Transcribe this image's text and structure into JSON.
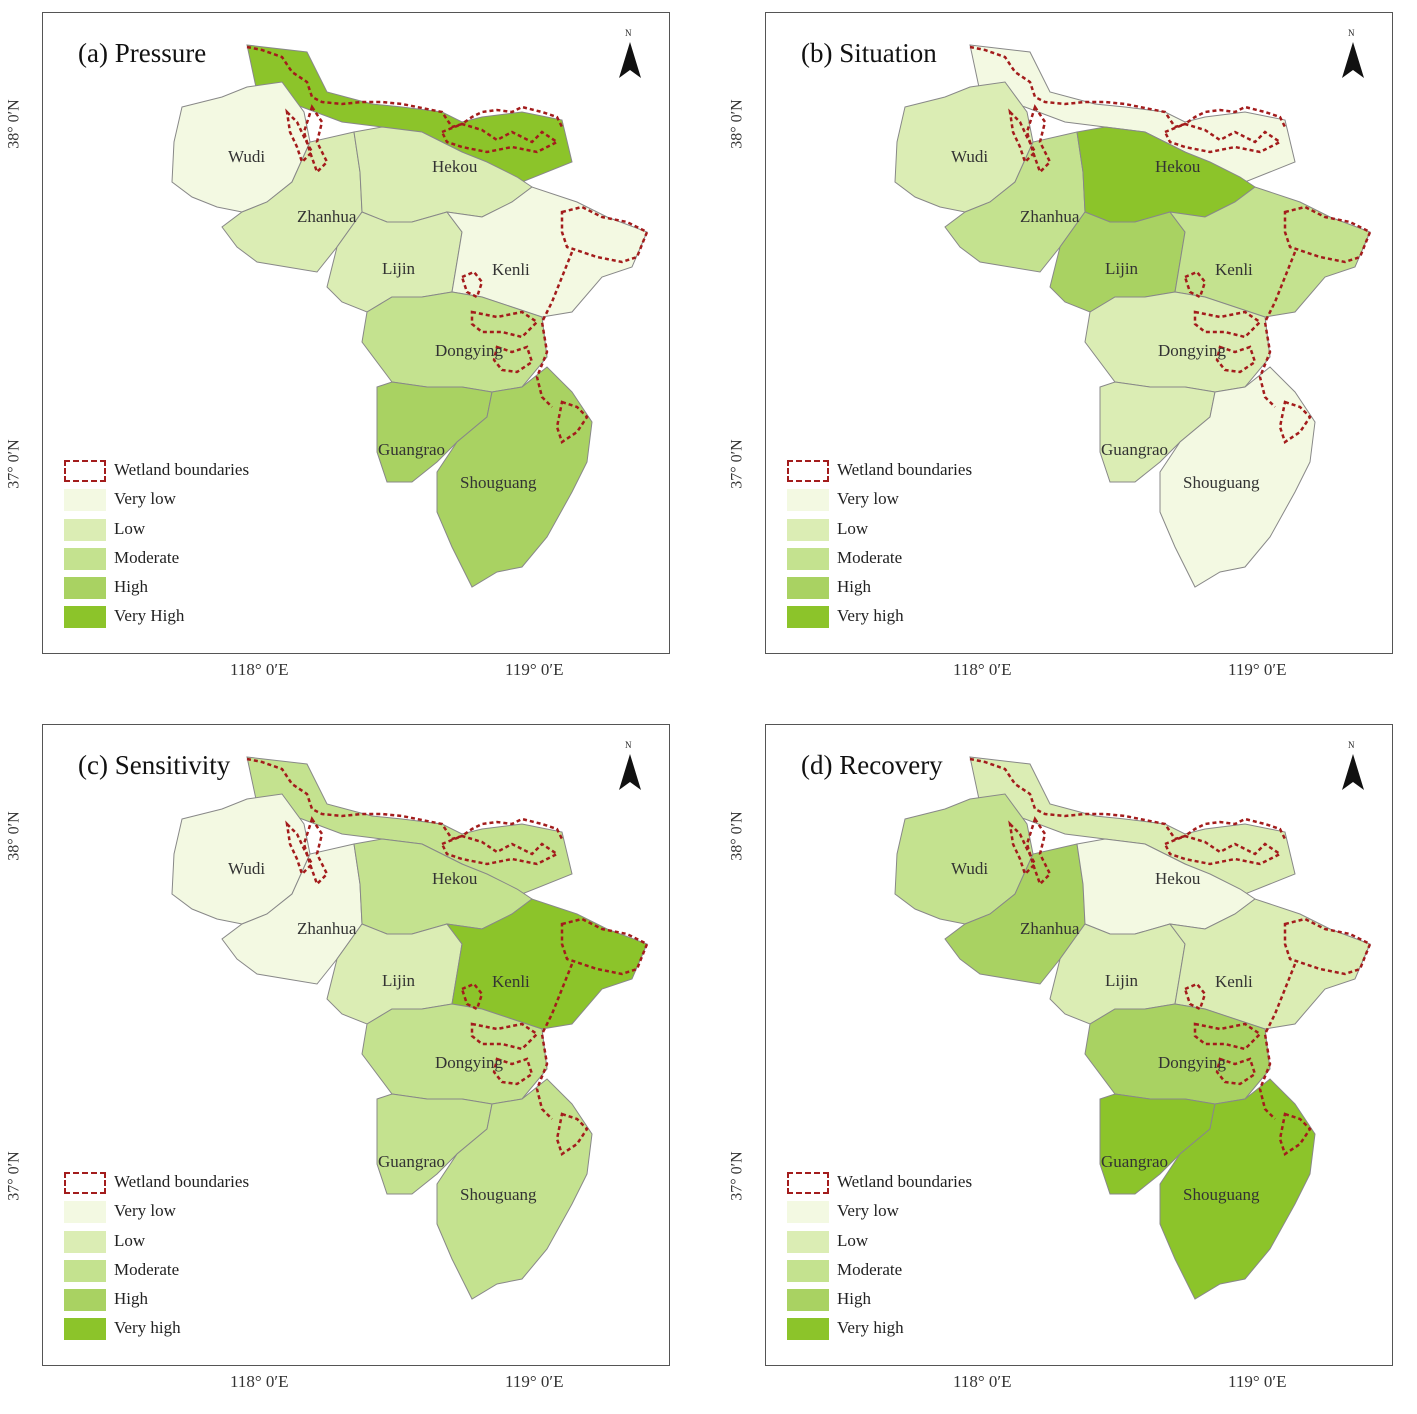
{
  "colors": {
    "very_low": "#f3f9e2",
    "low": "#dbedb4",
    "moderate": "#c4e28f",
    "high": "#a9d262",
    "very_high": "#8cc42a",
    "wetland": "#a31c1c",
    "county_line": "#888888"
  },
  "axes": {
    "lat_top": "38° 0′N",
    "lat_bottom": "37° 0′N",
    "lon_left": "118° 0′E",
    "lon_right": "119° 0′E"
  },
  "north_label": "N",
  "counties": [
    "Wudi",
    "Zhanhua",
    "Hekou",
    "Lijin",
    "Kenli",
    "Dongying",
    "Guangrao",
    "Shouguang"
  ],
  "panels": [
    {
      "title": "(a) Pressure",
      "legend": [
        "Wetland boundaries",
        "Very low",
        "Low",
        "Moderate",
        "High",
        "Very High"
      ],
      "levels": {
        "Wudi": "very_low",
        "Zhanhua": "low",
        "Hekou": "low",
        "Lijin": "low",
        "Kenli": "very_low",
        "Dongying": "moderate",
        "Guangrao": "high",
        "Shouguang": "high",
        "North": "very_high",
        "NE": "very_high"
      }
    },
    {
      "title": "(b) Situation",
      "legend": [
        "Wetland boundaries",
        "Very low",
        "Low",
        "Moderate",
        "High",
        "Very high"
      ],
      "levels": {
        "Wudi": "low",
        "Zhanhua": "moderate",
        "Hekou": "very_high",
        "Lijin": "high",
        "Kenli": "moderate",
        "Dongying": "low",
        "Guangrao": "low",
        "Shouguang": "very_low",
        "North": "very_low",
        "NE": "very_low"
      }
    },
    {
      "title": "(c) Sensitivity",
      "legend": [
        "Wetland boundaries",
        "Very low",
        "Low",
        "Moderate",
        "High",
        "Very high"
      ],
      "levels": {
        "Wudi": "very_low",
        "Zhanhua": "very_low",
        "Hekou": "moderate",
        "Lijin": "low",
        "Kenli": "very_high",
        "Dongying": "moderate",
        "Guangrao": "moderate",
        "Shouguang": "moderate",
        "North": "moderate",
        "NE": "very_high"
      }
    },
    {
      "title": "(d) Recovery",
      "legend": [
        "Wetland boundaries",
        "Very low",
        "Low",
        "Moderate",
        "High",
        "Very high"
      ],
      "levels": {
        "Wudi": "moderate",
        "Zhanhua": "high",
        "Hekou": "very_low",
        "Lijin": "low",
        "Kenli": "low",
        "Dongying": "high",
        "Guangrao": "very_high",
        "Shouguang": "very_high",
        "North": "low",
        "NE": "very_low"
      }
    }
  ]
}
